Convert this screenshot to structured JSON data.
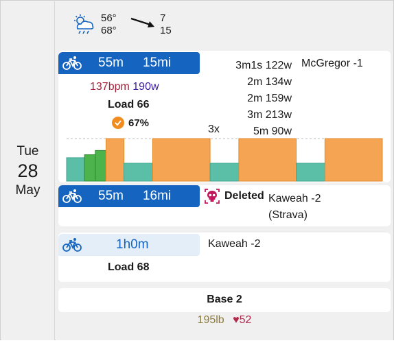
{
  "day": {
    "dow": "Tue",
    "date": "28",
    "month": "May"
  },
  "weather": {
    "icon": "rain-cloud-sun-icon",
    "temp_high": "56°",
    "temp_low": "68°",
    "wind_top": "7",
    "wind_bottom": "15"
  },
  "activity1": {
    "icon": "bike-icon",
    "duration": "55m",
    "distance": "15mi",
    "heart_rate": "137bpm",
    "power": "190w",
    "load": "Load 66",
    "compliance": "67%",
    "interval_repeat": "3x",
    "intervals": [
      "3m1s 122w",
      "2m 134w",
      "2m 159w",
      "3m 213w",
      "5m 90w"
    ],
    "workout_name": "McGregor -1",
    "colors": {
      "header": "#1565c0",
      "bpm": "#a32038",
      "power": "#3b1c9c",
      "check": "#f28c1e"
    },
    "chart_data": {
      "type": "bar",
      "colors": {
        "z2": "#5bbfa8",
        "z3": "#4cb44a",
        "z4": "#f5a454"
      },
      "blocks": [
        {
          "zone": "z2",
          "start": 0,
          "duration": 5,
          "level": 0.55
        },
        {
          "zone": "z3",
          "start": 5,
          "duration": 3,
          "level": 0.62
        },
        {
          "zone": "z3",
          "start": 8,
          "duration": 3,
          "level": 0.72
        },
        {
          "zone": "z4",
          "start": 11,
          "duration": 5,
          "level": 1.0
        },
        {
          "zone": "z2",
          "start": 16,
          "duration": 8,
          "level": 0.42
        },
        {
          "zone": "z4",
          "start": 24,
          "duration": 16,
          "level": 1.0
        },
        {
          "zone": "z2",
          "start": 40,
          "duration": 8,
          "level": 0.42
        },
        {
          "zone": "z4",
          "start": 48,
          "duration": 16,
          "level": 1.0
        },
        {
          "zone": "z2",
          "start": 64,
          "duration": 8,
          "level": 0.42
        },
        {
          "zone": "z4",
          "start": 72,
          "duration": 16,
          "level": 1.0
        }
      ],
      "total": 88,
      "ftp_line_level": 1.0
    }
  },
  "activity2": {
    "icon": "bike-icon",
    "duration": "55m",
    "distance": "16mi",
    "status_icon": "skull-icon",
    "status": "Deleted",
    "name_line1": "Kaweah -2",
    "name_line2": "(Strava)"
  },
  "planned": {
    "icon": "bike-icon",
    "duration": "1h0m",
    "name": "Kaweah -2",
    "load": "Load 68"
  },
  "plan": {
    "label": "Base 2"
  },
  "footer": {
    "weight": "195lb",
    "heart_icon": "heart-icon",
    "resting_hr": "52"
  }
}
